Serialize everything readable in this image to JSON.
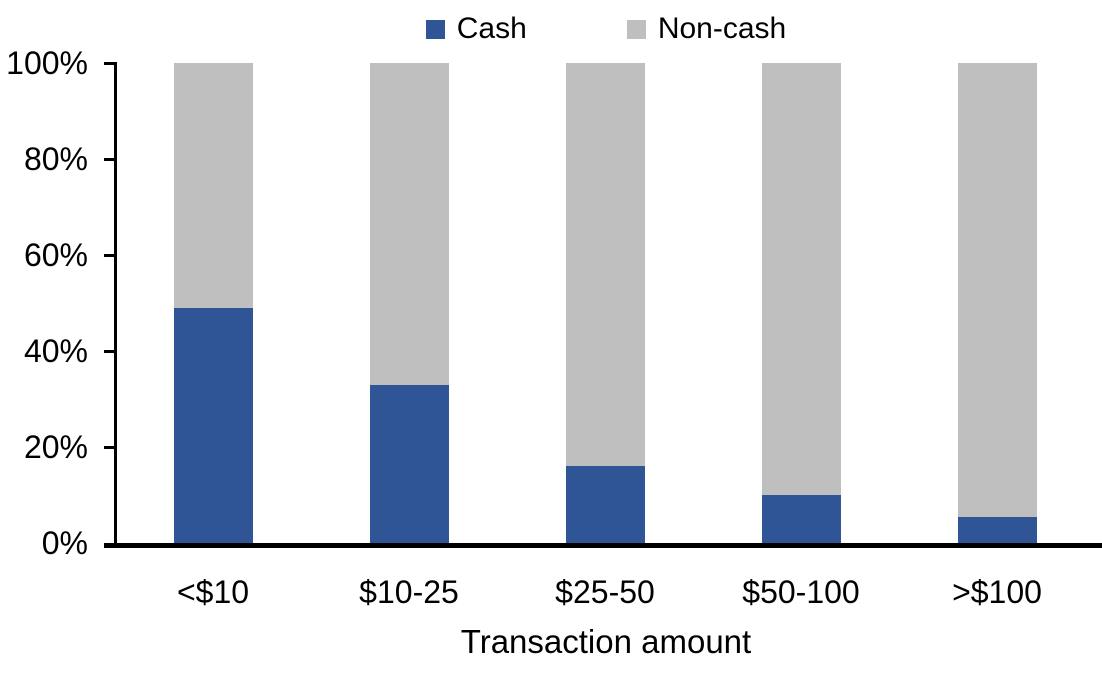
{
  "chart_data": {
    "type": "bar",
    "stacked": true,
    "units": "percent",
    "categories": [
      "<$10",
      "$10-25",
      "$25-50",
      "$50-100",
      ">$100"
    ],
    "series": [
      {
        "name": "Cash",
        "color": "#2F5597",
        "values": [
          49,
          33,
          16,
          10,
          5.5
        ]
      },
      {
        "name": "Non-cash",
        "color": "#BFBFBF",
        "values": [
          51,
          67,
          84,
          90,
          94.5
        ]
      }
    ],
    "title": "",
    "xlabel": "Transaction amount",
    "ylabel": "",
    "ylim": [
      0,
      100
    ],
    "y_ticks": [
      "0%",
      "20%",
      "40%",
      "60%",
      "80%",
      "100%"
    ],
    "legend_position": "top",
    "grid": false,
    "axis_color": "#000000",
    "background_color": "#FFFFFF"
  }
}
